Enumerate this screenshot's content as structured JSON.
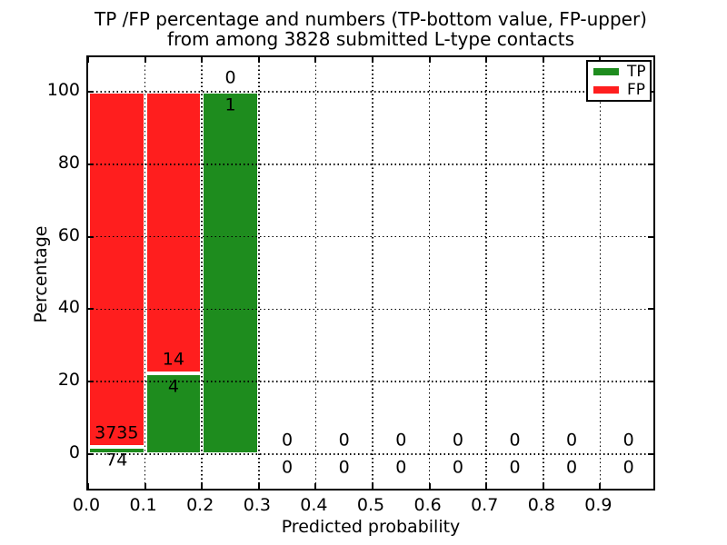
{
  "figure": {
    "title_line1": "TP /FP percentage and numbers (TP-bottom value, FP-upper)",
    "title_line2": "from among 3828 submitted L-type contacts"
  },
  "chart_data": {
    "type": "bar",
    "subtype": "stacked-percentage-histogram",
    "title": "TP /FP percentage and numbers (TP-bottom value, FP-upper) from among 3828 submitted L-type contacts",
    "xlabel": "Predicted probability",
    "ylabel": "Percentage",
    "xlim": [
      0,
      1.0
    ],
    "ylim": [
      -11,
      109
    ],
    "grid": "dotted",
    "total_contacts": 3828,
    "bin_width": 0.1,
    "x_tick_values": [
      0.0,
      0.1,
      0.2,
      0.3,
      0.4,
      0.5,
      0.6,
      0.7,
      0.8,
      0.9
    ],
    "x_tick_labels": [
      "0.0",
      "0.1",
      "0.2",
      "0.3",
      "0.4",
      "0.5",
      "0.6",
      "0.7",
      "0.8",
      "0.9"
    ],
    "y_tick_values": [
      0,
      20,
      40,
      60,
      80,
      100
    ],
    "y_tick_labels": [
      "0",
      "20",
      "40",
      "60",
      "80",
      "100"
    ],
    "legend": {
      "position": "upper-right",
      "entries": [
        {
          "label": "TP",
          "color": "#1e8c1e"
        },
        {
          "label": "FP",
          "color": "#ff1e1e"
        }
      ]
    },
    "bins": [
      {
        "range": [
          0.0,
          0.1
        ],
        "tp": 74,
        "fp": 3735
      },
      {
        "range": [
          0.1,
          0.2
        ],
        "tp": 4,
        "fp": 14
      },
      {
        "range": [
          0.2,
          0.3
        ],
        "tp": 1,
        "fp": 0
      },
      {
        "range": [
          0.3,
          0.4
        ],
        "tp": 0,
        "fp": 0
      },
      {
        "range": [
          0.4,
          0.5
        ],
        "tp": 0,
        "fp": 0
      },
      {
        "range": [
          0.5,
          0.6
        ],
        "tp": 0,
        "fp": 0
      },
      {
        "range": [
          0.6,
          0.7
        ],
        "tp": 0,
        "fp": 0
      },
      {
        "range": [
          0.7,
          0.8
        ],
        "tp": 0,
        "fp": 0
      },
      {
        "range": [
          0.8,
          0.9
        ],
        "tp": 0,
        "fp": 0
      },
      {
        "range": [
          0.9,
          1.0
        ],
        "tp": 0,
        "fp": 0
      }
    ],
    "colors": {
      "tp": "#1e8c1e",
      "fp": "#ff1e1e",
      "bar_edge": "#ffffff",
      "grid": "#000000",
      "text": "#000000"
    }
  }
}
